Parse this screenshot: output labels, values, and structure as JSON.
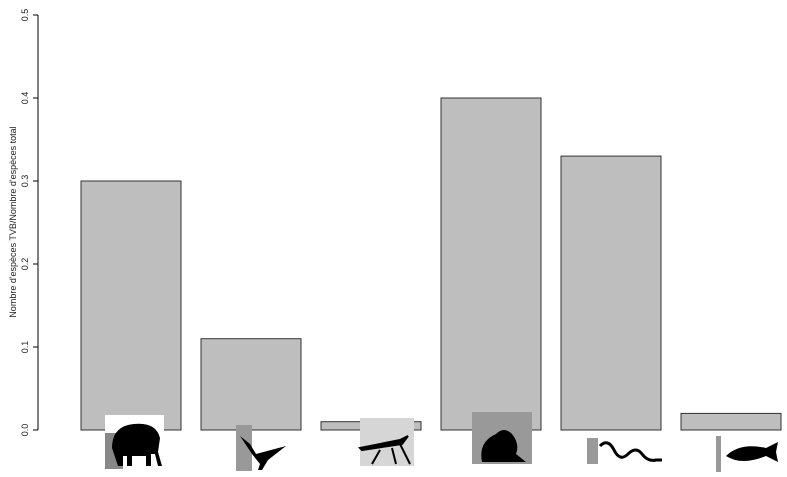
{
  "chart_data": {
    "type": "bar",
    "y_label": "Nombre d'espèces TVB/Nombre d'espèces total",
    "categories": [
      null,
      null,
      null,
      null,
      null,
      null
    ],
    "values": [
      0.3,
      0.11,
      0.01,
      0.4,
      0.33,
      0.02
    ],
    "color": "#bebebe",
    "ylim": [
      0,
      0.5
    ],
    "yticks": [
      {
        "value": 0,
        "label": "0.0"
      },
      0.1,
      0.2,
      0.3,
      0.4,
      0.5
    ],
    "grid": false
  }
}
